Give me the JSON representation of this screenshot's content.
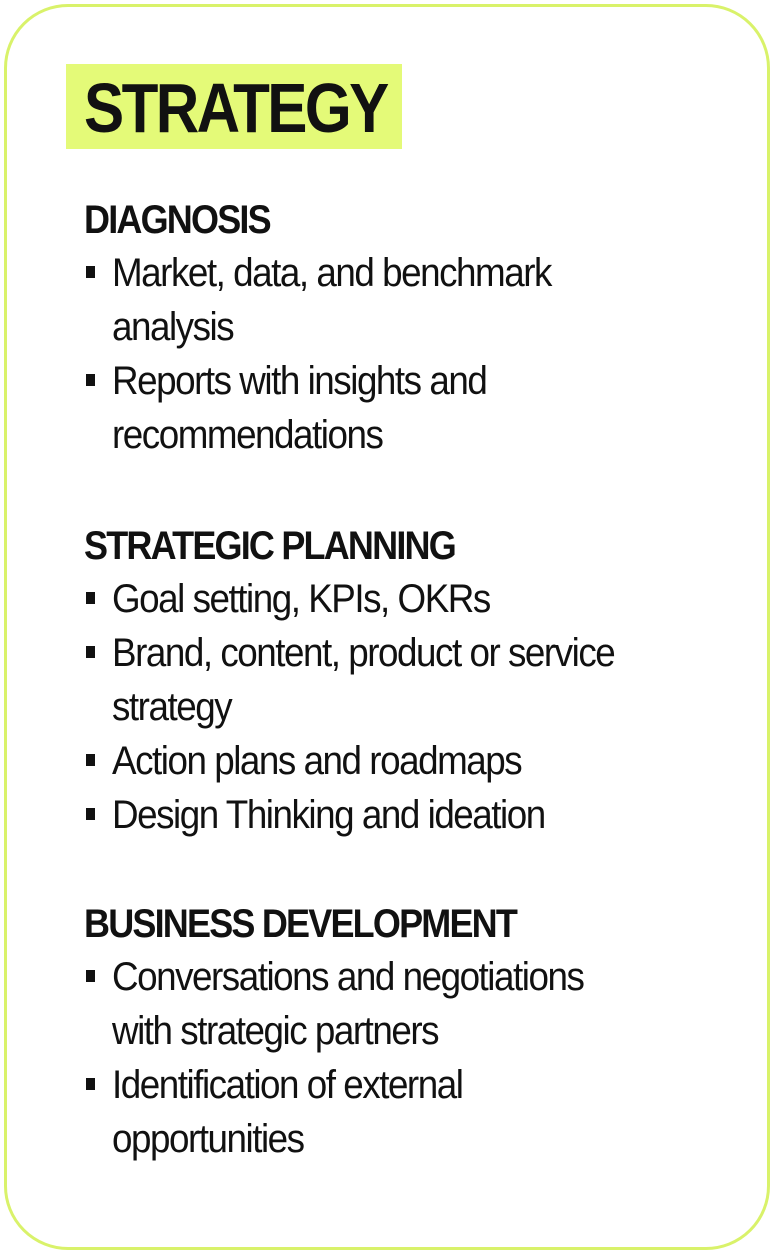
{
  "title": "STRATEGY",
  "colors": {
    "accent": "#e4fa78",
    "border": "#d9f26a",
    "text": "#111111"
  },
  "sections": [
    {
      "heading": "DIAGNOSIS",
      "items": [
        "Market, data, and benchmark\nanalysis",
        "Reports with insights and\nrecommendations"
      ]
    },
    {
      "heading": "STRATEGIC PLANNING",
      "items": [
        "Goal setting, KPIs, OKRs",
        "Brand, content, product or service\nstrategy",
        "Action plans and roadmaps",
        "Design Thinking and ideation"
      ]
    },
    {
      "heading": "BUSINESS DEVELOPMENT",
      "items": [
        "Conversations and negotiations\nwith strategic partners",
        "Identification of external\nopportunities"
      ]
    }
  ]
}
